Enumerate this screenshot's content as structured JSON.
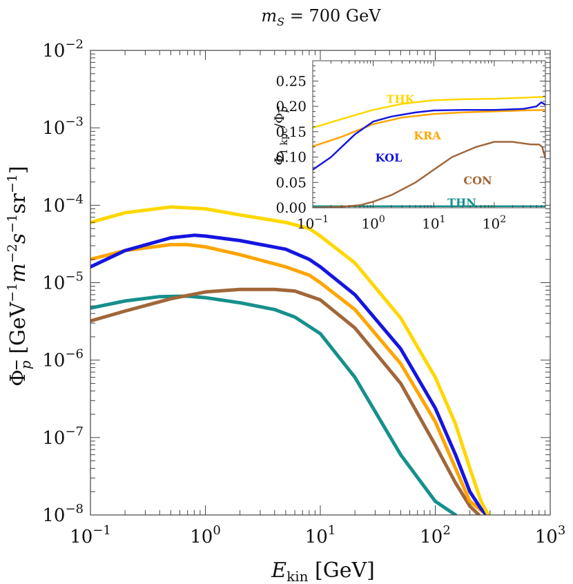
{
  "chart_data": [
    {
      "type": "line",
      "title": "m_S = 700 GeV",
      "title_parts": [
        "m",
        "S",
        " = 700 GeV"
      ],
      "xlabel": "E_kin [GeV]",
      "xlabel_parts": [
        "E",
        "kin",
        " [GeV]"
      ],
      "ylabel": "Φ_p̄ [GeV^-1 m^-2 s^-1 sr^-1]",
      "ylabel_parts": [
        "Φ",
        "p",
        " [GeV",
        "−1",
        "m",
        "−2",
        "s",
        "−1",
        "sr",
        "−1",
        "]"
      ],
      "xscale": "log",
      "yscale": "log",
      "xlim": [
        0.1,
        1000
      ],
      "ylim": [
        1e-08,
        0.01
      ],
      "x_ticks": [
        {
          "base": "10",
          "exp": "−1"
        },
        {
          "base": "10",
          "exp": "0"
        },
        {
          "base": "10",
          "exp": "1"
        },
        {
          "base": "10",
          "exp": "2"
        },
        {
          "base": "10",
          "exp": "3"
        }
      ],
      "y_ticks": [
        {
          "base": "10",
          "exp": "−8"
        },
        {
          "base": "10",
          "exp": "−7"
        },
        {
          "base": "10",
          "exp": "−6"
        },
        {
          "base": "10",
          "exp": "−5"
        },
        {
          "base": "10",
          "exp": "−4"
        },
        {
          "base": "10",
          "exp": "−3"
        },
        {
          "base": "10",
          "exp": "−2"
        }
      ],
      "series": [
        {
          "name": "THK",
          "color": "#FFD700",
          "points": [
            [
              0.1,
              6e-05
            ],
            [
              0.2,
              8e-05
            ],
            [
              0.5,
              9.5e-05
            ],
            [
              1,
              9e-05
            ],
            [
              2,
              7.5e-05
            ],
            [
              5,
              6e-05
            ],
            [
              8,
              5e-05
            ],
            [
              10,
              4e-05
            ],
            [
              20,
              1.8e-05
            ],
            [
              50,
              3.5e-06
            ],
            [
              100,
              6e-07
            ],
            [
              150,
              1.5e-07
            ],
            [
              200,
              4e-08
            ],
            [
              250,
              1.5e-08
            ],
            [
              290,
              1e-08
            ]
          ]
        },
        {
          "name": "KOL",
          "color": "#1515E0",
          "points": [
            [
              0.1,
              1.6e-05
            ],
            [
              0.2,
              2.6e-05
            ],
            [
              0.5,
              3.8e-05
            ],
            [
              0.8,
              4.1e-05
            ],
            [
              1,
              4e-05
            ],
            [
              2,
              3.5e-05
            ],
            [
              5,
              2.7e-05
            ],
            [
              8,
              2e-05
            ],
            [
              10,
              1.6e-05
            ],
            [
              20,
              7e-06
            ],
            [
              50,
              1.4e-06
            ],
            [
              100,
              2.4e-07
            ],
            [
              150,
              6e-08
            ],
            [
              200,
              2e-08
            ],
            [
              250,
              1.2e-08
            ],
            [
              280,
              1e-08
            ]
          ]
        },
        {
          "name": "KRA",
          "color": "#FFA500",
          "points": [
            [
              0.1,
              2e-05
            ],
            [
              0.2,
              2.6e-05
            ],
            [
              0.5,
              3.1e-05
            ],
            [
              0.7,
              3.1e-05
            ],
            [
              1,
              2.9e-05
            ],
            [
              2,
              2.3e-05
            ],
            [
              5,
              1.6e-05
            ],
            [
              8,
              1.25e-05
            ],
            [
              10,
              1e-05
            ],
            [
              20,
              4.5e-06
            ],
            [
              50,
              9e-07
            ],
            [
              100,
              1.6e-07
            ],
            [
              150,
              4e-08
            ],
            [
              200,
              1.5e-08
            ],
            [
              280,
              1e-08
            ]
          ]
        },
        {
          "name": "CON",
          "color": "#A0673A",
          "points": [
            [
              0.1,
              3.2e-06
            ],
            [
              0.2,
              4.3e-06
            ],
            [
              0.5,
              6.2e-06
            ],
            [
              1,
              7.6e-06
            ],
            [
              2,
              8.2e-06
            ],
            [
              4,
              8.2e-06
            ],
            [
              6,
              7.8e-06
            ],
            [
              10,
              6e-06
            ],
            [
              20,
              2.6e-06
            ],
            [
              50,
              5e-07
            ],
            [
              100,
              8e-08
            ],
            [
              150,
              2.6e-08
            ],
            [
              200,
              1.3e-08
            ],
            [
              240,
              1e-08
            ]
          ]
        },
        {
          "name": "THN",
          "color": "#15908C",
          "points": [
            [
              0.1,
              4.7e-06
            ],
            [
              0.2,
              5.8e-06
            ],
            [
              0.4,
              6.6e-06
            ],
            [
              0.7,
              6.7e-06
            ],
            [
              1,
              6.4e-06
            ],
            [
              2,
              5.5e-06
            ],
            [
              4,
              4.5e-06
            ],
            [
              6,
              3.6e-06
            ],
            [
              10,
              2.2e-06
            ],
            [
              20,
              6e-07
            ],
            [
              50,
              6e-08
            ],
            [
              100,
              1.5e-08
            ],
            [
              150,
              1e-08
            ]
          ]
        }
      ]
    },
    {
      "type": "line",
      "ylabel": "Φ_1 kpc/Φ_p̄",
      "ylabel_parts": [
        "Φ",
        "1 kpc",
        "/Φ",
        "p"
      ],
      "xscale": "log",
      "yscale": "linear",
      "xlim": [
        0.1,
        700
      ],
      "ylim": [
        0,
        0.29
      ],
      "x_ticks": [
        {
          "base": "10",
          "exp": "−1"
        },
        {
          "base": "10",
          "exp": "0"
        },
        {
          "base": "10",
          "exp": "1"
        },
        {
          "base": "10",
          "exp": "2"
        }
      ],
      "y_tick_labels": [
        "0.00",
        "0.05",
        "0.10",
        "0.15",
        "0.20",
        "0.25"
      ],
      "series": [
        {
          "name": "THK",
          "label": "THK",
          "color": "#FFD700",
          "points": [
            [
              0.1,
              0.158
            ],
            [
              0.3,
              0.175
            ],
            [
              1,
              0.193
            ],
            [
              3,
              0.205
            ],
            [
              10,
              0.212
            ],
            [
              30,
              0.214
            ],
            [
              100,
              0.215
            ],
            [
              300,
              0.217
            ],
            [
              700,
              0.219
            ]
          ]
        },
        {
          "name": "KOL",
          "label": "KOL",
          "color": "#1515E0",
          "points": [
            [
              0.1,
              0.075
            ],
            [
              0.2,
              0.1
            ],
            [
              0.5,
              0.145
            ],
            [
              1,
              0.17
            ],
            [
              2,
              0.18
            ],
            [
              5,
              0.188
            ],
            [
              10,
              0.192
            ],
            [
              30,
              0.193
            ],
            [
              100,
              0.193
            ],
            [
              300,
              0.195
            ],
            [
              500,
              0.2
            ],
            [
              600,
              0.208
            ],
            [
              700,
              0.203
            ]
          ]
        },
        {
          "name": "KRA",
          "label": "KRA",
          "color": "#FFA500",
          "points": [
            [
              0.1,
              0.121
            ],
            [
              0.3,
              0.14
            ],
            [
              1,
              0.165
            ],
            [
              3,
              0.178
            ],
            [
              10,
              0.185
            ],
            [
              30,
              0.188
            ],
            [
              100,
              0.19
            ],
            [
              300,
              0.192
            ],
            [
              700,
              0.193
            ]
          ]
        },
        {
          "name": "CON",
          "label": "CON",
          "color": "#A0673A",
          "points": [
            [
              0.1,
              0.0
            ],
            [
              0.3,
              0.002
            ],
            [
              0.6,
              0.005
            ],
            [
              1,
              0.012
            ],
            [
              2,
              0.025
            ],
            [
              5,
              0.05
            ],
            [
              10,
              0.075
            ],
            [
              20,
              0.1
            ],
            [
              50,
              0.12
            ],
            [
              100,
              0.13
            ],
            [
              200,
              0.13
            ],
            [
              400,
              0.125
            ],
            [
              550,
              0.125
            ],
            [
              620,
              0.12
            ],
            [
              700,
              0.098
            ]
          ]
        },
        {
          "name": "THN",
          "label": "THN",
          "color": "#15908C",
          "points": [
            [
              0.1,
              0.003
            ],
            [
              1,
              0.003
            ],
            [
              10,
              0.003
            ],
            [
              100,
              0.003
            ],
            [
              700,
              0.003
            ]
          ]
        }
      ]
    }
  ]
}
